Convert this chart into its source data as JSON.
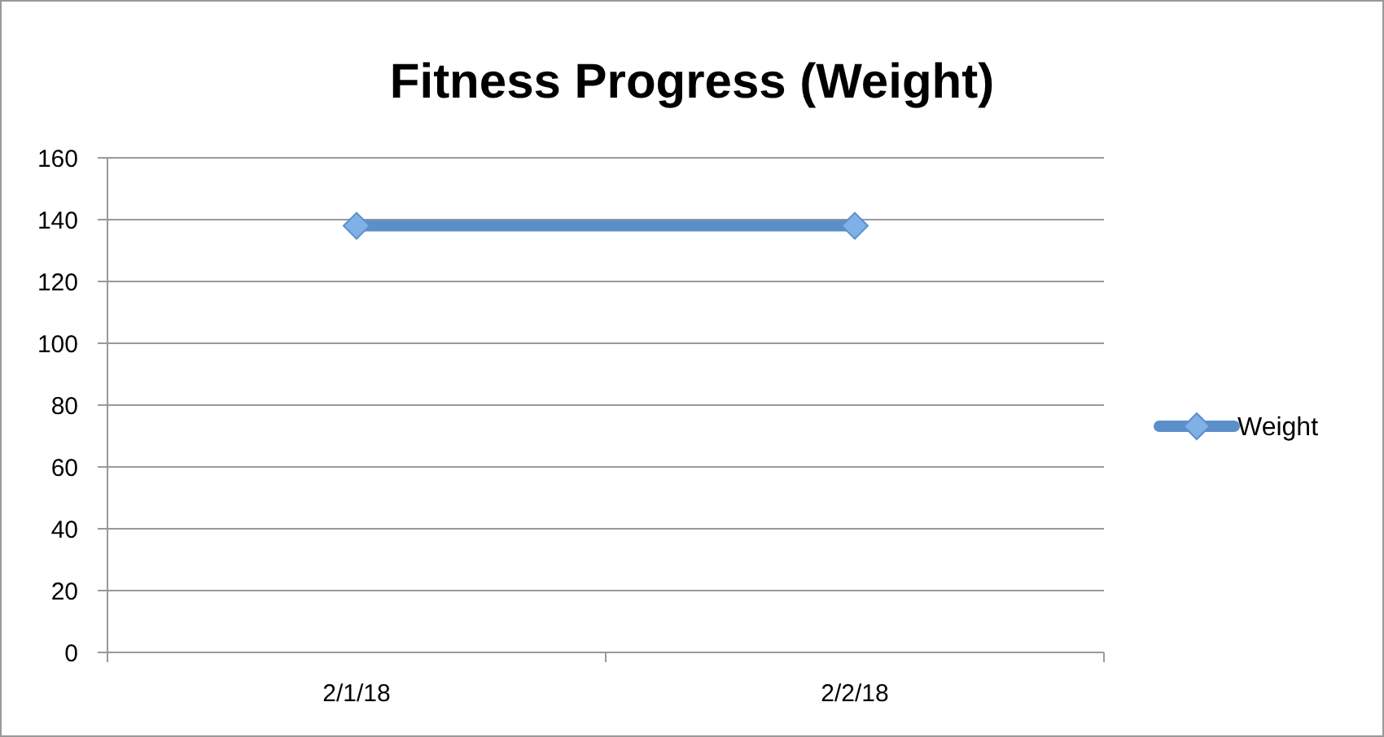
{
  "chart_data": {
    "type": "line",
    "title": "Fitness Progress (Weight)",
    "categories": [
      "2/1/18",
      "2/2/18"
    ],
    "series": [
      {
        "name": "Weight",
        "color": "#5b8fc9",
        "values": [
          138,
          138
        ]
      }
    ],
    "ylim": [
      0,
      160
    ],
    "yticks": [
      0,
      20,
      40,
      60,
      80,
      100,
      120,
      140,
      160
    ],
    "grid": "y",
    "legend": "right",
    "marker": "diamond",
    "line_style": "solid"
  }
}
